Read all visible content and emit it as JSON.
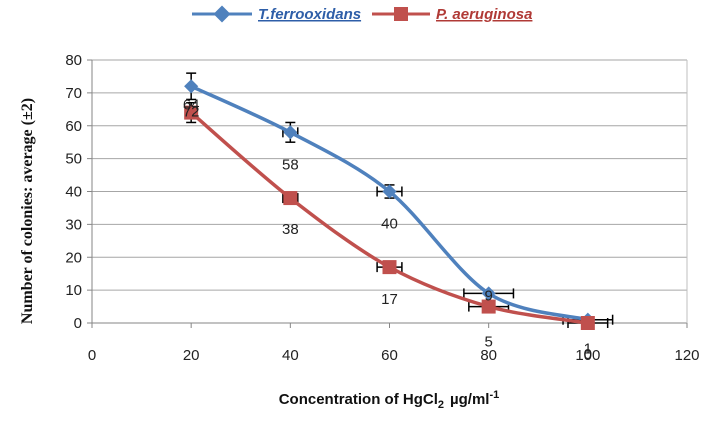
{
  "chart_data": {
    "type": "line",
    "xlabel": "Concentration of HgCl",
    "xlabel_sub": "2",
    "xlabel_unit": "µg/ml",
    "xlabel_sup": "-1",
    "ylabel": "Number of colonies: average (±2)",
    "xlim": [
      0,
      120
    ],
    "ylim": [
      0,
      80
    ],
    "xticks": [
      "0",
      "20",
      "40",
      "60",
      "80",
      "100",
      "120"
    ],
    "yticks": [
      "0",
      "10",
      "20",
      "30",
      "40",
      "50",
      "60",
      "70",
      "80"
    ],
    "grid": "horizontal",
    "legend_position": "top",
    "series": [
      {
        "name": "T.ferrooxidans",
        "color": "#4F81BD",
        "marker": "diamond",
        "x": [
          20,
          40,
          60,
          80,
          100
        ],
        "y": [
          72,
          58,
          40,
          9,
          1
        ],
        "labels": [
          "72",
          "58",
          "40",
          "9",
          "1"
        ],
        "x_error": [
          0,
          1.5,
          2.5,
          5,
          5
        ],
        "y_error": [
          4,
          3,
          2,
          0,
          0
        ]
      },
      {
        "name": "P. aeruginosa",
        "color": "#C0504D",
        "marker": "square",
        "x": [
          20,
          40,
          60,
          80,
          100
        ],
        "y": [
          64,
          38,
          17,
          5,
          0
        ],
        "labels": [
          "64",
          "38",
          "17",
          "5",
          "0"
        ],
        "x_error": [
          0,
          1.5,
          2.5,
          4,
          4
        ],
        "y_error": [
          3,
          0,
          0,
          0,
          0
        ]
      }
    ]
  }
}
